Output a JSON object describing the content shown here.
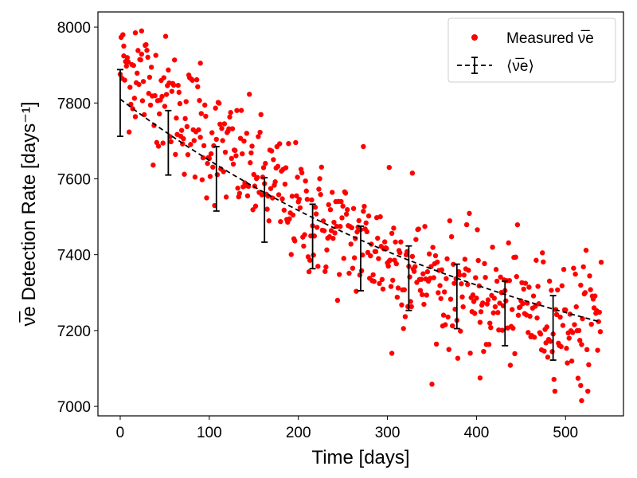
{
  "chart_data": {
    "type": "scatter",
    "xlabel": "Time [days]",
    "ylabel": "ν̅e Detection Rate [days⁻¹]",
    "xlim": [
      -25,
      565
    ],
    "ylim": [
      6975,
      8040
    ],
    "xticks": [
      0,
      100,
      200,
      300,
      400,
      500
    ],
    "yticks": [
      7000,
      7200,
      7400,
      7600,
      7800,
      8000
    ],
    "grid": false,
    "legend_position": "top-right",
    "legend": [
      "Measured ν̅e",
      "⟨ν̅e⟩"
    ],
    "colors": {
      "measured": "#ff0000",
      "mean": "#000000"
    },
    "series": [
      {
        "name": "Measured ν̅e",
        "style": "scatter",
        "model_note": "approx. 540 daily points following mean curve with scatter ~±150",
        "trend": {
          "x": [
            0,
            50,
            100,
            150,
            200,
            250,
            300,
            350,
            400,
            450,
            500,
            540
          ],
          "y": [
            7900,
            7820,
            7700,
            7620,
            7520,
            7450,
            7400,
            7330,
            7290,
            7260,
            7230,
            7230
          ]
        },
        "scatter_sd": 78,
        "n_points": 540,
        "outliers": [
          {
            "x": 4,
            "y": 7950
          },
          {
            "x": 17,
            "y": 7985
          },
          {
            "x": 24,
            "y": 7990
          },
          {
            "x": 90,
            "y": 7905
          },
          {
            "x": 273,
            "y": 7685
          },
          {
            "x": 305,
            "y": 7140
          },
          {
            "x": 404,
            "y": 7075
          },
          {
            "x": 518,
            "y": 7015
          },
          {
            "x": 517,
            "y": 7055
          },
          {
            "x": 540,
            "y": 7380
          },
          {
            "x": 302,
            "y": 7630
          },
          {
            "x": 328,
            "y": 7615
          }
        ]
      },
      {
        "name": "⟨ν̅e⟩",
        "style": "dashed-line-with-errorbars",
        "x": [
          0,
          54,
          108,
          162,
          216,
          270,
          324,
          378,
          432,
          486
        ],
        "y": [
          7800,
          7695,
          7600,
          7518,
          7448,
          7390,
          7338,
          7290,
          7245,
          7207
        ],
        "yerr": [
          88,
          85,
          85,
          85,
          85,
          85,
          85,
          85,
          85,
          85
        ],
        "curve": {
          "a": 6920,
          "b": 890,
          "tau": 500,
          "formula": "y = a + b*exp(-x/tau)",
          "x_end": 540
        }
      }
    ]
  }
}
